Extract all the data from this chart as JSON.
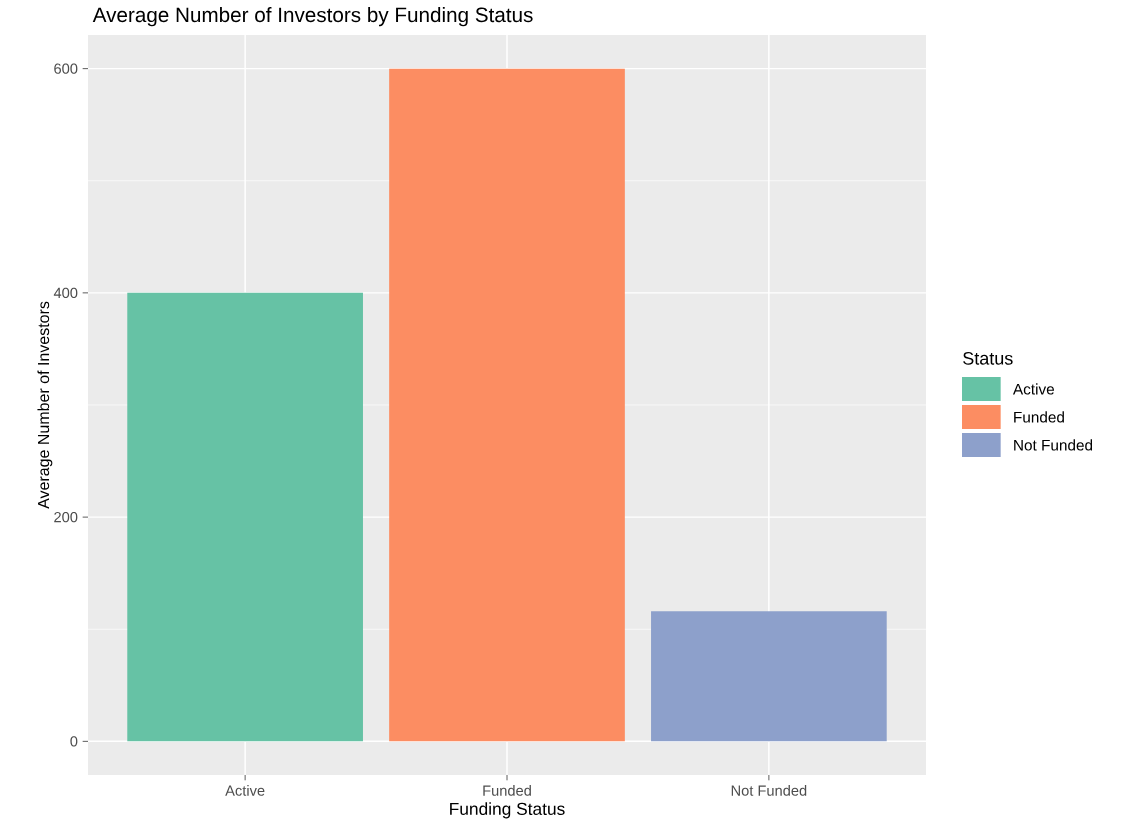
{
  "chart_data": {
    "type": "bar",
    "title": "Average Number of Investors by Funding Status",
    "xlabel": "Funding Status",
    "ylabel": "Average Number of Investors",
    "legend_title": "Status",
    "categories": [
      "Active",
      "Funded",
      "Not Funded"
    ],
    "series": [
      {
        "name": "Active",
        "color": "#66c2a5",
        "values": [
          400,
          null,
          null
        ]
      },
      {
        "name": "Funded",
        "color": "#fc8d62",
        "values": [
          null,
          600,
          null
        ]
      },
      {
        "name": "Not Funded",
        "color": "#8da0cb",
        "values": [
          null,
          null,
          116
        ]
      }
    ],
    "ylim": [
      -30,
      630
    ],
    "yticks": [
      0,
      200,
      400,
      600
    ],
    "grid": true,
    "legend": "right"
  }
}
